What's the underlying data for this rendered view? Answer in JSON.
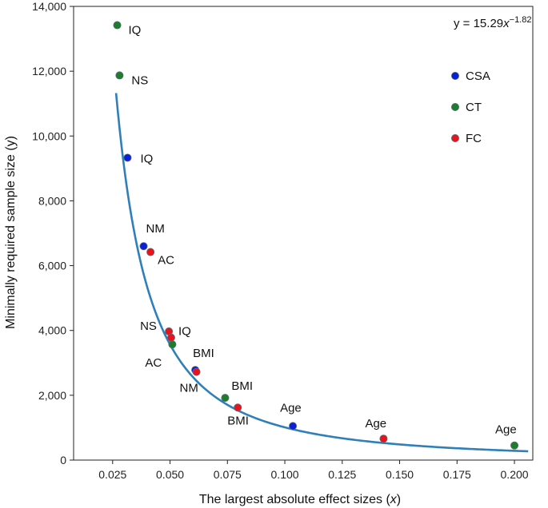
{
  "chart_data": {
    "type": "scatter",
    "xlabel_main": "The largest absolute effect sizes (",
    "xlabel_var": "x",
    "xlabel_close": ")",
    "ylabel": "Minimally required sample size (y)",
    "xlim": [
      0.008,
      0.208
    ],
    "ylim": [
      0,
      14000
    ],
    "x_ticks": [
      0.025,
      0.05,
      0.075,
      0.1,
      0.125,
      0.15,
      0.175,
      0.2
    ],
    "x_tick_labels": [
      "0.025",
      "0.050",
      "0.075",
      "0.100",
      "0.125",
      "0.150",
      "0.175",
      "0.200"
    ],
    "y_ticks": [
      0,
      2000,
      4000,
      6000,
      8000,
      10000,
      12000,
      14000
    ],
    "y_tick_labels": [
      "0",
      "2,000",
      "4,000",
      "6,000",
      "8,000",
      "10,000",
      "12,000",
      "14,000"
    ],
    "fit": {
      "equation_prefix": "y = 15.29",
      "equation_var": "x",
      "equation_exp": "−1.82",
      "coefficient": 15.29,
      "exponent": -1.82,
      "x_range": [
        0.0265,
        0.206
      ],
      "color": "#2f7fb8"
    },
    "legend": {
      "placement": "top-right",
      "items": [
        {
          "name": "CSA",
          "color": "#0a1fd6"
        },
        {
          "name": "CT",
          "color": "#1e7d2c"
        },
        {
          "name": "FC",
          "color": "#e8141c"
        }
      ]
    },
    "series": [
      {
        "name": "CSA",
        "color": "#0a1fd6",
        "points": [
          {
            "x": 0.0315,
            "y": 9330,
            "label": "IQ",
            "ldx": 16,
            "ldy": 6
          },
          {
            "x": 0.0385,
            "y": 6600,
            "label": "NM",
            "ldx": 3,
            "ldy": -17
          },
          {
            "x": 0.061,
            "y": 2780,
            "label": "BMI",
            "ldx": -3,
            "ldy": -16
          },
          {
            "x": 0.1035,
            "y": 1050,
            "label": "Age",
            "ldx": -16,
            "ldy": -18
          }
        ]
      },
      {
        "name": "CT",
        "color": "#1e7d2c",
        "points": [
          {
            "x": 0.027,
            "y": 13420,
            "label": "IQ",
            "ldx": 14,
            "ldy": 11
          },
          {
            "x": 0.028,
            "y": 11870,
            "label": "NS",
            "ldx": 15,
            "ldy": 11
          },
          {
            "x": 0.051,
            "y": 3570,
            "label": "AC",
            "ldx": -34,
            "ldy": 28
          },
          {
            "x": 0.074,
            "y": 1920,
            "label": "BMI",
            "ldx": 8,
            "ldy": -10
          },
          {
            "x": 0.2,
            "y": 450,
            "label": "Age",
            "ldx": -24,
            "ldy": -15
          }
        ]
      },
      {
        "name": "FC",
        "color": "#e8141c",
        "points": [
          {
            "x": 0.0415,
            "y": 6420,
            "label": "AC",
            "ldx": 9,
            "ldy": 15
          },
          {
            "x": 0.0495,
            "y": 3970,
            "label": "NS",
            "ldx": -36,
            "ldy": -2
          },
          {
            "x": 0.0505,
            "y": 3780,
            "label": "IQ",
            "ldx": 9,
            "ldy": -3
          },
          {
            "x": 0.0615,
            "y": 2720,
            "label": "NM",
            "ldx": -21,
            "ldy": 25
          },
          {
            "x": 0.0795,
            "y": 1620,
            "label": "BMI",
            "ldx": -13,
            "ldy": 21
          },
          {
            "x": 0.143,
            "y": 660,
            "label": "Age",
            "ldx": -23,
            "ldy": -14
          }
        ]
      }
    ]
  }
}
